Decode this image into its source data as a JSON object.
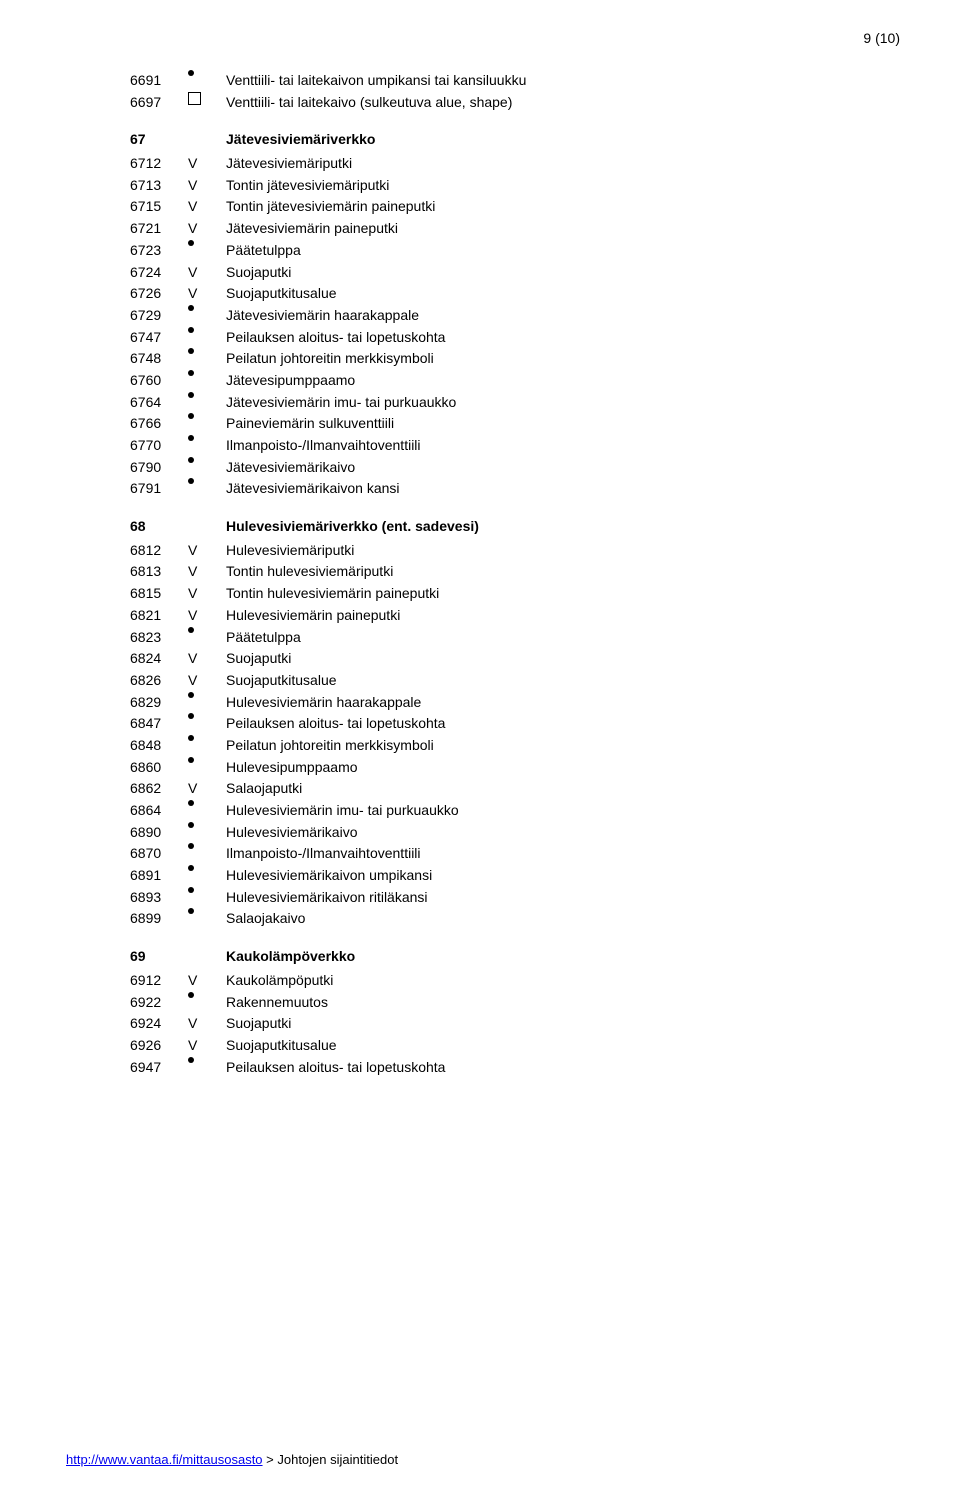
{
  "page_number": "9 (10)",
  "footer": {
    "url_text": "http://www.vantaa.fi/mittausosasto",
    "suffix": " > Johtojen sijaintitiedot"
  },
  "pre_rows": [
    {
      "code": "6691",
      "sym": "dot",
      "label": "Venttiili- tai laitekaivon umpikansi tai kansiluukku"
    },
    {
      "code": "6697",
      "sym": "square",
      "label": "Venttiili- tai laitekaivo (sulkeutuva alue, shape)"
    }
  ],
  "sections": [
    {
      "code": "67",
      "title": "Jätevesiviemäriverkko",
      "rows": [
        {
          "code": "6712",
          "sym": "V",
          "label": "Jätevesiviemäriputki"
        },
        {
          "code": "6713",
          "sym": "V",
          "label": "Tontin jätevesiviemäriputki"
        },
        {
          "code": "6715",
          "sym": "V",
          "label": "Tontin jätevesiviemärin paineputki"
        },
        {
          "code": "6721",
          "sym": "V",
          "label": "Jätevesiviemärin paineputki"
        },
        {
          "code": "6723",
          "sym": "dot",
          "label": "Päätetulppa"
        },
        {
          "code": "6724",
          "sym": "V",
          "label": "Suojaputki"
        },
        {
          "code": "6726",
          "sym": "V",
          "label": "Suojaputkitusalue"
        },
        {
          "code": "6729",
          "sym": "dot",
          "label": "Jätevesiviemärin haarakappale"
        },
        {
          "code": "6747",
          "sym": "dot",
          "label": "Peilauksen aloitus- tai lopetuskohta"
        },
        {
          "code": "6748",
          "sym": "dot",
          "label": "Peilatun johtoreitin merkkisymboli"
        },
        {
          "code": "6760",
          "sym": "dot",
          "label": "Jätevesipumppaamo"
        },
        {
          "code": "6764",
          "sym": "dot",
          "label": "Jätevesiviemärin imu- tai purkuaukko"
        },
        {
          "code": "6766",
          "sym": "dot",
          "label": "Paineviemärin sulkuventtiili"
        },
        {
          "code": "6770",
          "sym": "dot",
          "label": "Ilmanpoisto-/Ilmanvaihtoventtiili"
        },
        {
          "code": "6790",
          "sym": "dot",
          "label": "Jätevesiviemärikaivo"
        },
        {
          "code": "6791",
          "sym": "dot",
          "label": "Jätevesiviemärikaivon kansi"
        }
      ]
    },
    {
      "code": "68",
      "title": "Hulevesiviemäriverkko (ent. sadevesi)",
      "rows": [
        {
          "code": "6812",
          "sym": "V",
          "label": "Hulevesiviemäriputki"
        },
        {
          "code": "6813",
          "sym": "V",
          "label": "Tontin hulevesiviemäriputki"
        },
        {
          "code": "6815",
          "sym": "V",
          "label": "Tontin hulevesiviemärin paineputki"
        },
        {
          "code": "6821",
          "sym": "V",
          "label": "Hulevesiviemärin paineputki"
        },
        {
          "code": "6823",
          "sym": "dot",
          "label": "Päätetulppa"
        },
        {
          "code": "6824",
          "sym": "V",
          "label": "Suojaputki"
        },
        {
          "code": "6826",
          "sym": "V",
          "label": "Suojaputkitusalue"
        },
        {
          "code": "6829",
          "sym": "dot",
          "label": "Hulevesiviemärin haarakappale"
        },
        {
          "code": "6847",
          "sym": "dot",
          "label": "Peilauksen aloitus- tai lopetuskohta"
        },
        {
          "code": "6848",
          "sym": "dot",
          "label": "Peilatun johtoreitin merkkisymboli"
        },
        {
          "code": "6860",
          "sym": "dot",
          "label": "Hulevesipumppaamo"
        },
        {
          "code": "6862",
          "sym": "V",
          "label": "Salaojaputki"
        },
        {
          "code": "6864",
          "sym": "dot",
          "label": "Hulevesiviemärin imu- tai purkuaukko"
        },
        {
          "code": "6890",
          "sym": "dot",
          "label": "Hulevesiviemärikaivo"
        },
        {
          "code": "6870",
          "sym": "dot",
          "label": "Ilmanpoisto-/Ilmanvaihtoventtiili"
        },
        {
          "code": "6891",
          "sym": "dot",
          "label": "Hulevesiviemärikaivon umpikansi"
        },
        {
          "code": "6893",
          "sym": "dot",
          "label": "Hulevesiviemärikaivon ritiläkansi"
        },
        {
          "code": "6899",
          "sym": "dot",
          "label": "Salaojakaivo"
        }
      ]
    },
    {
      "code": "69",
      "title": "Kaukolämpöverkko",
      "rows": [
        {
          "code": "6912",
          "sym": "V",
          "label": "Kaukolämpöputki"
        },
        {
          "code": "6922",
          "sym": "dot",
          "label": "Rakennemuutos"
        },
        {
          "code": "6924",
          "sym": "V",
          "label": "Suojaputki"
        },
        {
          "code": "6926",
          "sym": "V",
          "label": "Suojaputkitusalue"
        },
        {
          "code": "6947",
          "sym": "dot",
          "label": "Peilauksen aloitus- tai lopetuskohta"
        }
      ]
    }
  ]
}
